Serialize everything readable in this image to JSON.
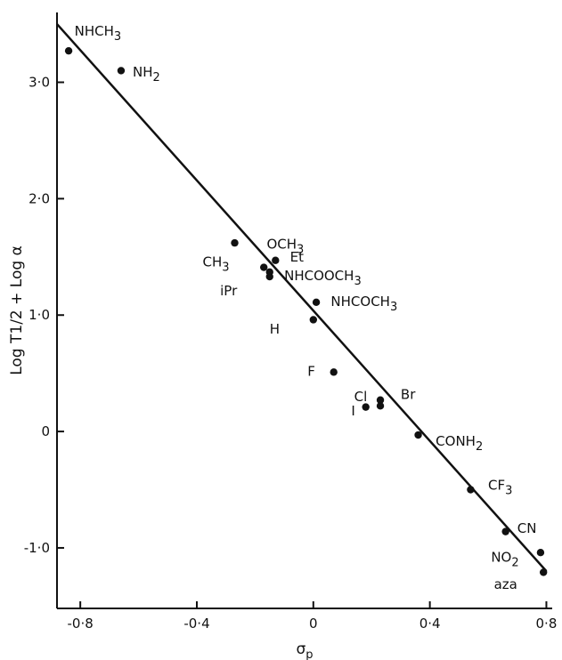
{
  "chart_data": {
    "type": "scatter",
    "xlabel": "σp",
    "ylabel": "Log T1/2 + Log α",
    "xlim": [
      -0.88,
      0.82
    ],
    "ylim": [
      -1.52,
      3.6
    ],
    "x_ticks": [
      {
        "value": -0.8,
        "label": "-0·8"
      },
      {
        "value": -0.4,
        "label": "-0·4"
      },
      {
        "value": 0,
        "label": "0"
      },
      {
        "value": 0.4,
        "label": "0·4"
      },
      {
        "value": 0.8,
        "label": "0·8"
      }
    ],
    "y_ticks": [
      {
        "value": 3.0,
        "label": "3·0"
      },
      {
        "value": 2.0,
        "label": "2·0"
      },
      {
        "value": 1.0,
        "label": "1·0"
      },
      {
        "value": 0,
        "label": "0"
      },
      {
        "value": -1.0,
        "label": "-1·0"
      }
    ],
    "fit_line": {
      "x": [
        -0.88,
        0.8
      ],
      "y": [
        3.5,
        -1.2
      ]
    },
    "points": [
      {
        "x": -0.84,
        "y": 3.27
      },
      {
        "x": -0.66,
        "y": 3.1
      },
      {
        "x": -0.27,
        "y": 1.62
      },
      {
        "x": -0.17,
        "y": 1.41
      },
      {
        "x": -0.15,
        "y": 1.37
      },
      {
        "x": -0.15,
        "y": 1.33
      },
      {
        "x": -0.13,
        "y": 1.47
      },
      {
        "x": 0.0,
        "y": 0.96
      },
      {
        "x": 0.01,
        "y": 1.11
      },
      {
        "x": 0.07,
        "y": 0.51
      },
      {
        "x": 0.18,
        "y": 0.21
      },
      {
        "x": 0.23,
        "y": 0.22
      },
      {
        "x": 0.23,
        "y": 0.27
      },
      {
        "x": 0.36,
        "y": -0.03
      },
      {
        "x": 0.54,
        "y": -0.5
      },
      {
        "x": 0.66,
        "y": -0.86
      },
      {
        "x": 0.78,
        "y": -1.04
      },
      {
        "x": 0.79,
        "y": -1.21
      }
    ],
    "labels": [
      {
        "text": "NHCH3",
        "x": -0.82,
        "y": 3.4
      },
      {
        "text": "NH2",
        "x": -0.62,
        "y": 3.05
      },
      {
        "text": "OCH3",
        "x": -0.16,
        "y": 1.57
      },
      {
        "text": "CH3",
        "x": -0.38,
        "y": 1.42
      },
      {
        "text": "Et",
        "x": -0.08,
        "y": 1.46
      },
      {
        "text": "NHCOOCH3",
        "x": -0.1,
        "y": 1.3
      },
      {
        "text": "iPr",
        "x": -0.32,
        "y": 1.17
      },
      {
        "text": "NHCOCH3",
        "x": 0.06,
        "y": 1.08
      },
      {
        "text": "H",
        "x": -0.15,
        "y": 0.84
      },
      {
        "text": "F",
        "x": -0.02,
        "y": 0.48
      },
      {
        "text": "Cl",
        "x": 0.14,
        "y": 0.26
      },
      {
        "text": "I",
        "x": 0.13,
        "y": 0.14
      },
      {
        "text": "Br",
        "x": 0.3,
        "y": 0.28
      },
      {
        "text": "CONH2",
        "x": 0.42,
        "y": -0.12
      },
      {
        "text": "CF3",
        "x": 0.6,
        "y": -0.5
      },
      {
        "text": "CN",
        "x": 0.7,
        "y": -0.87
      },
      {
        "text": "NO2",
        "x": 0.61,
        "y": -1.12
      },
      {
        "text": "aza",
        "x": 0.62,
        "y": -1.35
      }
    ]
  }
}
